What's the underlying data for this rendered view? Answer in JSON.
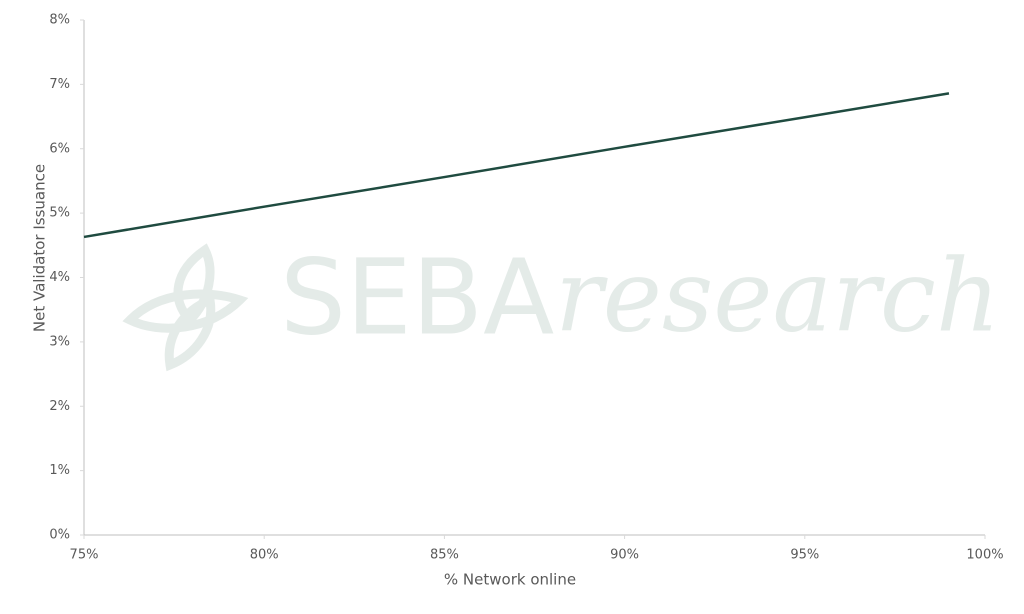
{
  "chart_data": {
    "type": "line",
    "x_label": "% Network online",
    "y_label": "Net Validator Issuance",
    "watermark": {
      "brand": "SEBA",
      "word": "research"
    },
    "x": [
      75,
      80,
      85,
      90,
      95,
      99
    ],
    "series": [
      {
        "name": "Net Validator Issuance",
        "color": "#1f4b40",
        "values": [
          4.63,
          5.1,
          5.56,
          6.03,
          6.49,
          6.86
        ]
      }
    ],
    "xlim": [
      75,
      100
    ],
    "xticks": [
      {
        "value": 75,
        "label": "75%"
      },
      {
        "value": 80,
        "label": "80%"
      },
      {
        "value": 85,
        "label": "85%"
      },
      {
        "value": 90,
        "label": "90%"
      },
      {
        "value": 95,
        "label": "95%"
      },
      {
        "value": 100,
        "label": "100%"
      }
    ],
    "ylim": [
      0,
      8
    ],
    "yticks": [
      {
        "value": 0,
        "label": "0%"
      },
      {
        "value": 1,
        "label": "1%"
      },
      {
        "value": 2,
        "label": "2%"
      },
      {
        "value": 3,
        "label": "3%"
      },
      {
        "value": 4,
        "label": "4%"
      },
      {
        "value": 5,
        "label": "5%"
      },
      {
        "value": 6,
        "label": "6%"
      },
      {
        "value": 7,
        "label": "7%"
      },
      {
        "value": 8,
        "label": "8%"
      }
    ],
    "grid": false
  }
}
